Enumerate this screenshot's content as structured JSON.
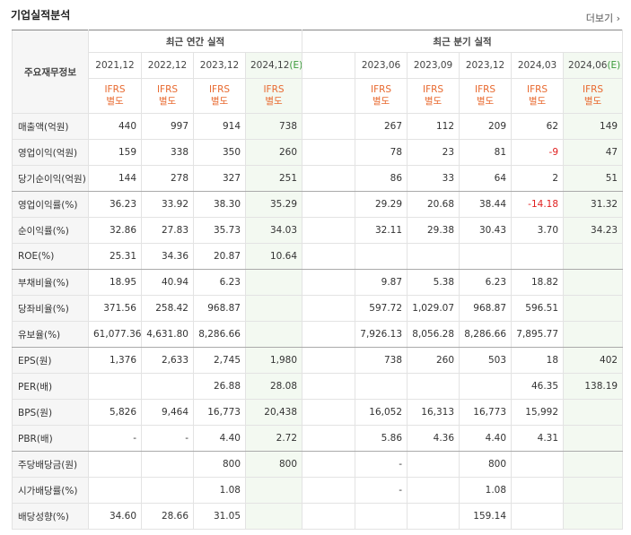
{
  "header": {
    "title": "기업실적분석",
    "more": "더보기"
  },
  "table": {
    "corner": "주요재무정보",
    "groups": [
      "최근 연간 실적",
      "최근 분기 실적"
    ],
    "periods": [
      {
        "label": "2021,12"
      },
      {
        "label": "2022,12"
      },
      {
        "label": "2023,12"
      },
      {
        "label": "2024,12",
        "mark": "(E)"
      },
      null,
      {
        "label": "2023,06"
      },
      {
        "label": "2023,09"
      },
      {
        "label": "2023,12"
      },
      {
        "label": "2024,03"
      },
      {
        "label": "2024,06",
        "mark": "(E)"
      }
    ],
    "standards": [
      [
        "IFRS",
        "별도"
      ],
      [
        "IFRS",
        "별도"
      ],
      [
        "IFRS",
        "별도"
      ],
      [
        "IFRS",
        "별도"
      ],
      null,
      [
        "IFRS",
        "별도"
      ],
      [
        "IFRS",
        "별도"
      ],
      [
        "IFRS",
        "별도"
      ],
      [
        "IFRS",
        "별도"
      ],
      [
        "IFRS",
        "별도"
      ]
    ],
    "rows": [
      {
        "label": "매출액(억원)",
        "values": [
          "440",
          "997",
          "914",
          "738",
          null,
          "267",
          "112",
          "209",
          "62",
          "149"
        ]
      },
      {
        "label": "영업이익(억원)",
        "values": [
          "159",
          "338",
          "350",
          "260",
          null,
          "78",
          "23",
          "81",
          "-9",
          "47"
        ]
      },
      {
        "label": "당기순이익(억원)",
        "values": [
          "144",
          "278",
          "327",
          "251",
          null,
          "86",
          "33",
          "64",
          "2",
          "51"
        ]
      },
      {
        "label": "영업이익률(%)",
        "values": [
          "36.23",
          "33.92",
          "38.30",
          "35.29",
          null,
          "29.29",
          "20.68",
          "38.44",
          "-14.18",
          "31.32"
        ]
      },
      {
        "label": "순이익률(%)",
        "values": [
          "32.86",
          "27.83",
          "35.73",
          "34.03",
          null,
          "32.11",
          "29.38",
          "30.43",
          "3.70",
          "34.23"
        ]
      },
      {
        "label": "ROE(%)",
        "values": [
          "25.31",
          "34.36",
          "20.87",
          "10.64",
          null,
          null,
          null,
          null,
          null,
          null
        ]
      },
      {
        "label": "부채비율(%)",
        "values": [
          "18.95",
          "40.94",
          "6.23",
          null,
          null,
          "9.87",
          "5.38",
          "6.23",
          "18.82",
          null
        ]
      },
      {
        "label": "당좌비율(%)",
        "values": [
          "371.56",
          "258.42",
          "968.87",
          null,
          null,
          "597.72",
          "1,029.07",
          "968.87",
          "596.51",
          null
        ]
      },
      {
        "label": "유보율(%)",
        "values": [
          "61,077.36",
          "4,631.80",
          "8,286.66",
          null,
          null,
          "7,926.13",
          "8,056.28",
          "8,286.66",
          "7,895.77",
          null
        ]
      },
      {
        "label": "EPS(원)",
        "values": [
          "1,376",
          "2,633",
          "2,745",
          "1,980",
          null,
          "738",
          "260",
          "503",
          "18",
          "402"
        ]
      },
      {
        "label": "PER(배)",
        "values": [
          null,
          null,
          "26.88",
          "28.08",
          null,
          null,
          null,
          null,
          "46.35",
          "138.19"
        ]
      },
      {
        "label": "BPS(원)",
        "values": [
          "5,826",
          "9,464",
          "16,773",
          "20,438",
          null,
          "16,052",
          "16,313",
          "16,773",
          "15,992",
          null
        ]
      },
      {
        "label": "PBR(배)",
        "values": [
          "-",
          "-",
          "4.40",
          "2.72",
          null,
          "5.86",
          "4.36",
          "4.40",
          "4.31",
          null
        ]
      },
      {
        "label": "주당배당금(원)",
        "values": [
          null,
          null,
          "800",
          "800",
          null,
          "-",
          null,
          "800",
          null,
          null
        ]
      },
      {
        "label": "시가배당률(%)",
        "values": [
          null,
          null,
          "1.08",
          null,
          null,
          "-",
          null,
          "1.08",
          null,
          null
        ]
      },
      {
        "label": "배당성향(%)",
        "values": [
          "34.60",
          "28.66",
          "31.05",
          null,
          null,
          null,
          null,
          "159.14",
          null,
          null
        ]
      }
    ]
  }
}
